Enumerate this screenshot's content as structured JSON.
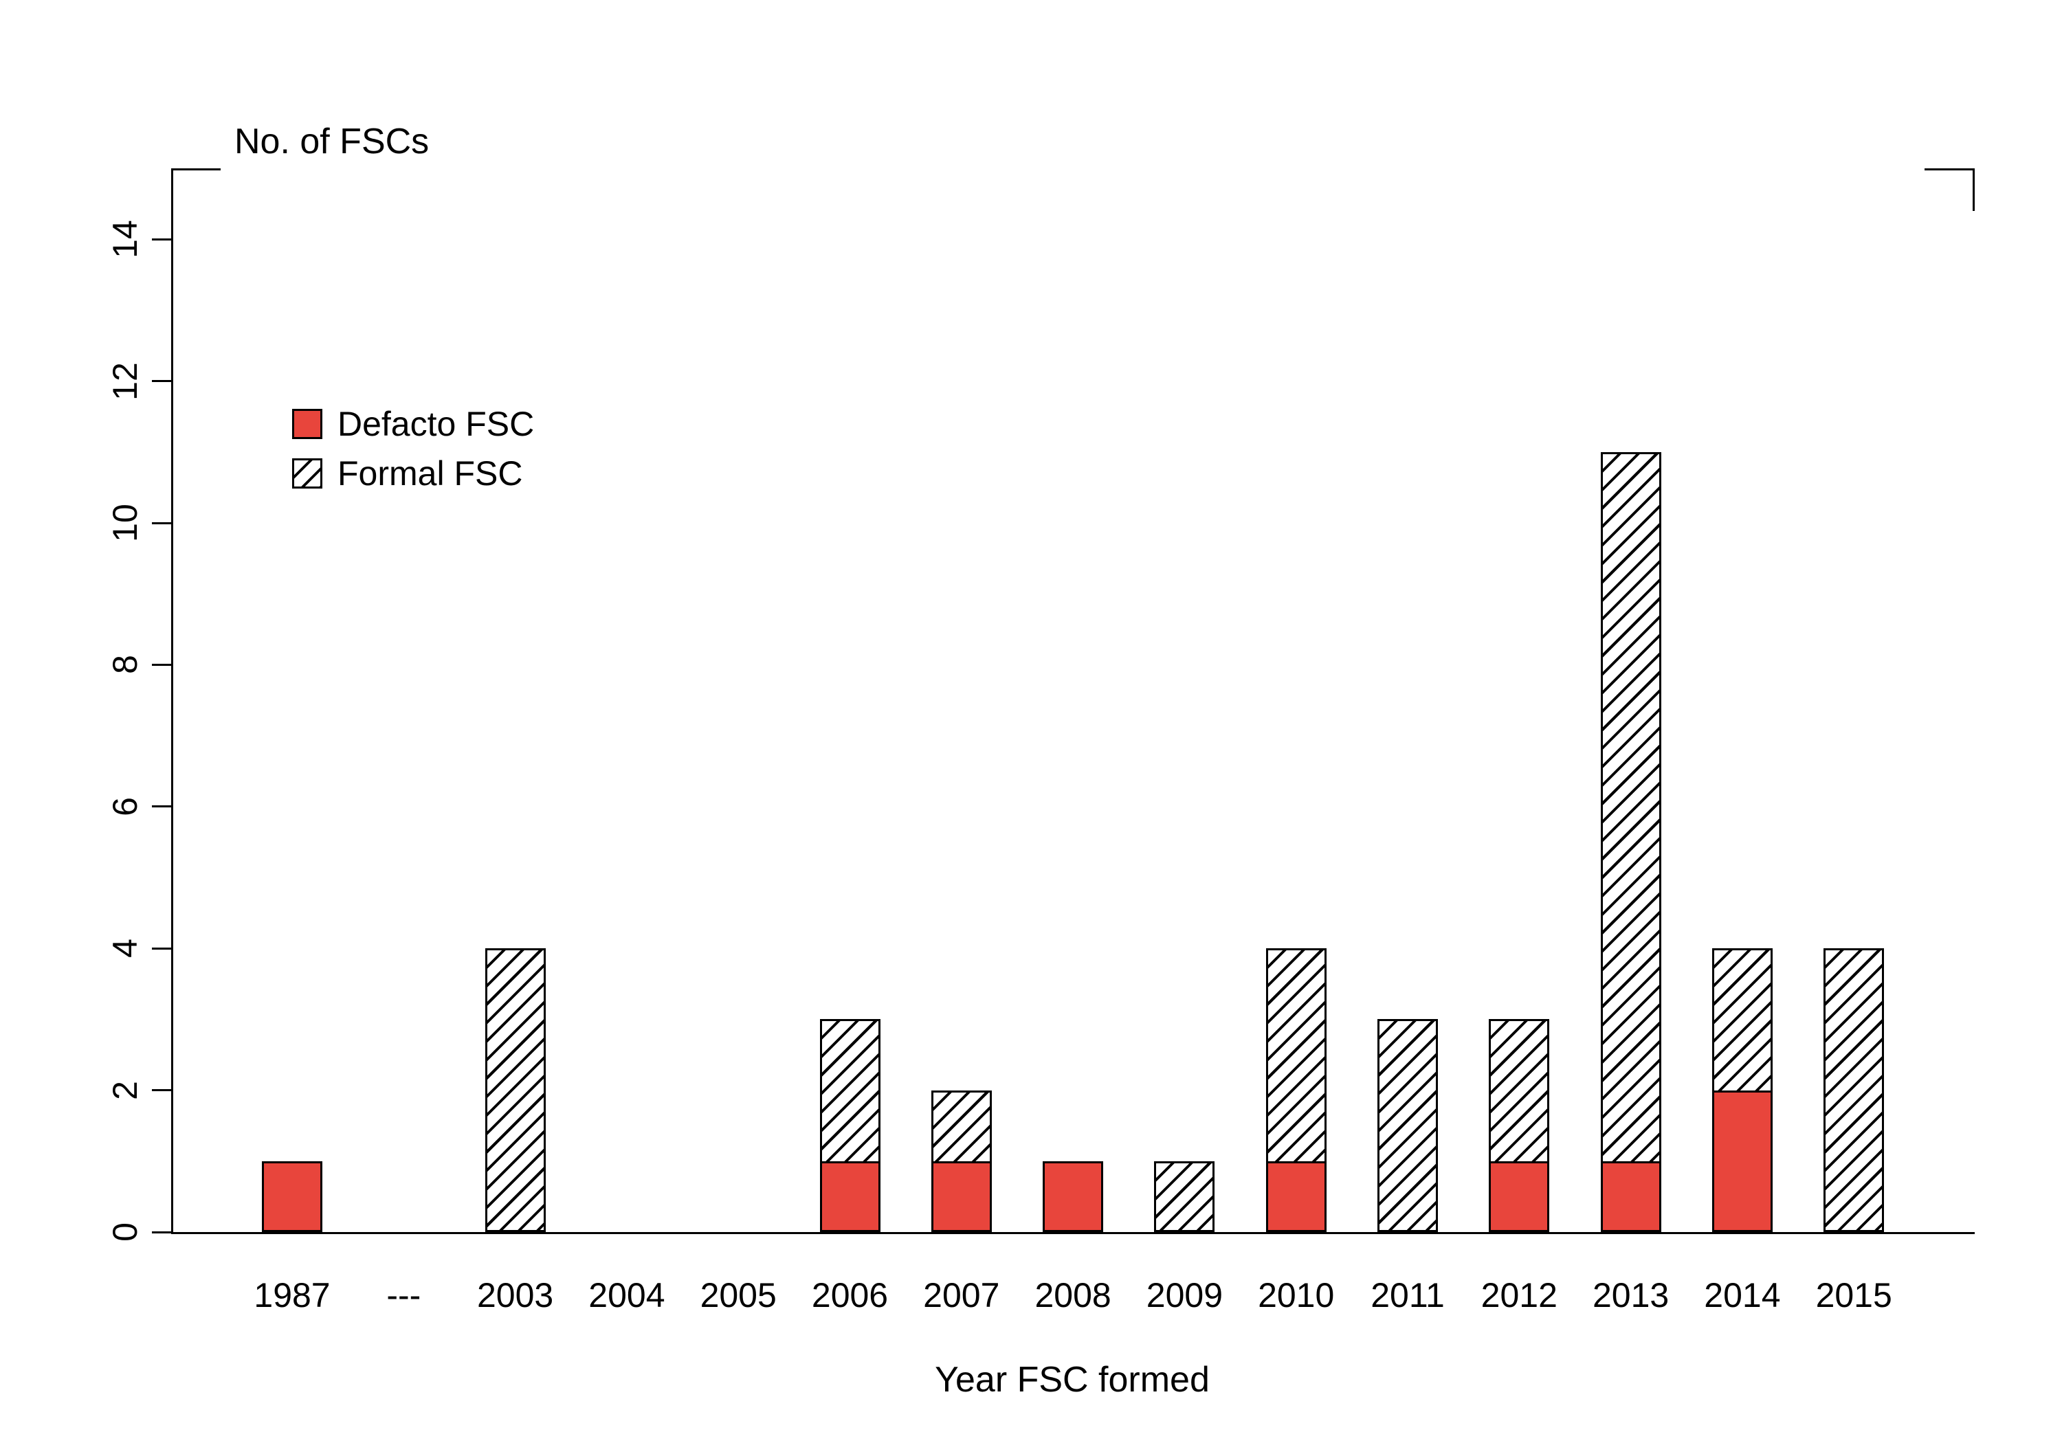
{
  "figure": {
    "ylabel": "No. of FSCs",
    "xlabel": "Year FSC formed",
    "legend": [
      {
        "label": "Defacto FSC",
        "swatch": "solid-red"
      },
      {
        "label": "Formal FSC",
        "swatch": "hatched"
      }
    ]
  },
  "colors": {
    "defacto_red": "#e8453c",
    "axis": "#000000",
    "background": "#ffffff"
  },
  "chart_data": {
    "type": "bar",
    "stacked": true,
    "title": "",
    "xlabel": "Year FSC formed",
    "ylabel": "No. of FSCs",
    "categories": [
      "1987",
      "---",
      "2003",
      "2004",
      "2005",
      "2006",
      "2007",
      "2008",
      "2009",
      "2010",
      "2011",
      "2012",
      "2013",
      "2014",
      "2015"
    ],
    "series": [
      {
        "name": "Defacto FSC",
        "style": "solid",
        "color": "#e8453c",
        "values": [
          1,
          0,
          0,
          0,
          0,
          1,
          1,
          1,
          0,
          1,
          0,
          1,
          1,
          2,
          0
        ]
      },
      {
        "name": "Formal FSC",
        "style": "hatched",
        "color": "#ffffff",
        "values": [
          0,
          0,
          4,
          0,
          0,
          2,
          1,
          0,
          1,
          3,
          3,
          2,
          10,
          2,
          4
        ]
      }
    ],
    "totals": [
      1,
      0,
      4,
      0,
      0,
      3,
      2,
      1,
      1,
      4,
      3,
      3,
      11,
      4,
      4
    ],
    "ylim": [
      0,
      15
    ],
    "yticks": [
      0,
      2,
      4,
      6,
      8,
      10,
      12,
      14
    ],
    "grid": false,
    "legend_position": "upper-left-inside"
  }
}
